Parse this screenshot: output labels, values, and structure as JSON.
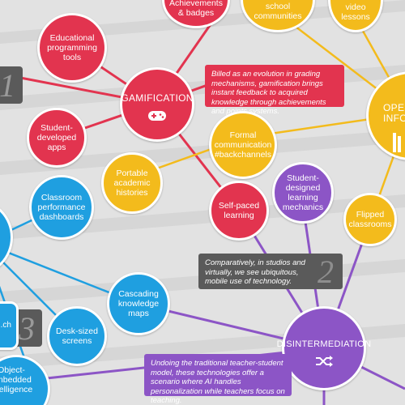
{
  "nodes": {
    "achievements": "Achievements & badges",
    "school_communities": "school communities",
    "video_lessons": "video lessons",
    "educational_tools": "Educational programming tools",
    "gamification": "GAMIFICATION",
    "open_info": "OPEN INFO",
    "student_apps": "Student-developed apps",
    "formal_comm": "Formal communication #backchannels",
    "portable_histories": "Portable academic histories",
    "student_designed": "Student-designed learning mechanics",
    "classroom_dashboards": "Classroom performance dashboards",
    "self_paced": "Self-paced learning",
    "flipped": "Flipped classrooms",
    "cascading": "Cascading knowledge maps",
    "desk_screens": "Desk-sized screens",
    "disintermediation": "DISINTERMEDIATION",
    "object_embedded": "Object-embedded intelligence",
    "students_partial": "...dents ...ch"
  },
  "callouts": {
    "gamification": "Billed as an evolution in grading mechanisms, gamification brings instant feedback to acquired knowledge through achievements and points systems.",
    "ubiquitous": "Comparatively, in studios and virtually, we see ubiquitous, mobile use of technology.",
    "disintermediation": "Undoing the traditional teacher-student model, these technologies offer a scenario where AI handles personalization while teachers focus on teaching."
  },
  "numbers": {
    "one": "1",
    "two": "2",
    "three": "3"
  },
  "icons": {
    "gamification": "gamepad-icon",
    "disintermediation": "shuffle-icon",
    "open_info": "books-icon"
  },
  "colors": {
    "red": "#e2344f",
    "yellow": "#f3bb1c",
    "blue": "#1f9fe0",
    "purple": "#8c55c6",
    "gray": "#5a5a5a"
  }
}
